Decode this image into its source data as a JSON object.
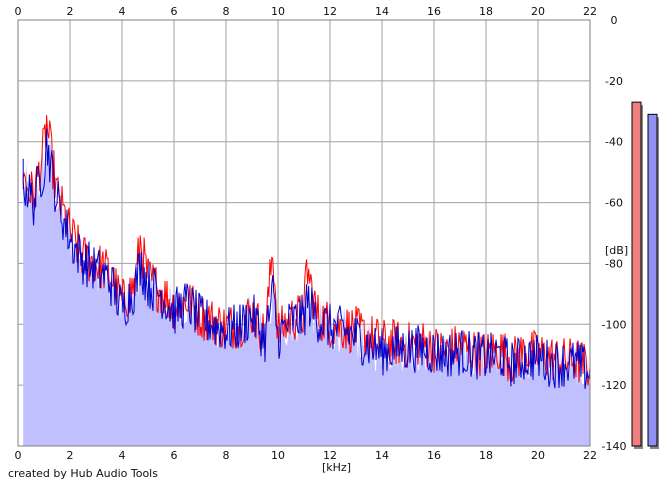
{
  "credit": "created by Hub Audio Tools",
  "chart_data": {
    "type": "line",
    "xlabel": "[kHz]",
    "ylabel": "[dB]",
    "xlim": [
      0,
      22
    ],
    "ylim": [
      -140,
      0
    ],
    "xticks": [
      "0",
      "2",
      "4",
      "6",
      "8",
      "10",
      "12",
      "14",
      "16",
      "18",
      "20",
      "22"
    ],
    "yticks": [
      "0",
      "-20",
      "-40",
      "-60",
      "-80",
      "-100",
      "-120",
      "-140"
    ],
    "grid": true,
    "colors": {
      "left_channel": "#ff0000",
      "right_channel": "#0000cc",
      "area_fill": "#c0c0ff",
      "grid": "#a0a0a0",
      "level_left": "#f08080",
      "level_right": "#9090f0"
    },
    "series": [
      {
        "color": "#ff0000",
        "x": [
          0.2,
          0.6,
          1.0,
          1.1,
          1.5,
          2.0,
          2.5,
          3.0,
          3.5,
          4.0,
          4.5,
          4.7,
          5.0,
          5.5,
          6.0,
          6.5,
          7.0,
          7.5,
          8.0,
          8.5,
          9.0,
          9.5,
          9.8,
          10.0,
          10.5,
          11.0,
          11.1,
          11.5,
          12.0,
          12.5,
          13.0,
          13.5,
          14.0,
          14.5,
          15.0,
          15.5,
          16.0,
          16.5,
          17.0,
          17.5,
          18.0,
          18.5,
          19.0,
          19.5,
          20.0,
          20.5,
          21.0,
          21.5,
          22.0
        ],
        "y": [
          -52,
          -58,
          -42,
          -34,
          -57,
          -70,
          -78,
          -80,
          -83,
          -93,
          -87,
          -73,
          -85,
          -89,
          -94,
          -92,
          -97,
          -99,
          -101,
          -100,
          -96,
          -104,
          -75,
          -103,
          -98,
          -97,
          -81,
          -97,
          -100,
          -101,
          -102,
          -104,
          -106,
          -106,
          -107,
          -106,
          -108,
          -109,
          -107,
          -109,
          -110,
          -108,
          -112,
          -109,
          -110,
          -111,
          -112,
          -112,
          -114
        ]
      },
      {
        "color": "#0000cc",
        "x": [
          0.2,
          0.6,
          1.0,
          1.1,
          1.5,
          2.0,
          2.5,
          3.0,
          3.5,
          4.0,
          4.5,
          4.7,
          5.0,
          5.5,
          6.0,
          6.5,
          7.0,
          7.5,
          8.0,
          8.5,
          9.0,
          9.5,
          9.8,
          10.0,
          10.5,
          11.0,
          11.1,
          11.5,
          12.0,
          12.5,
          13.0,
          13.5,
          14.0,
          14.5,
          15.0,
          15.5,
          16.0,
          16.5,
          17.0,
          17.5,
          18.0,
          18.5,
          19.0,
          19.5,
          20.0,
          20.5,
          21.0,
          21.5,
          22.0
        ],
        "y": [
          -53,
          -60,
          -48,
          -40,
          -59,
          -72,
          -79,
          -82,
          -85,
          -95,
          -88,
          -80,
          -87,
          -90,
          -96,
          -93,
          -98,
          -100,
          -102,
          -101,
          -97,
          -105,
          -90,
          -104,
          -99,
          -98,
          -92,
          -98,
          -101,
          -102,
          -104,
          -107,
          -109,
          -108,
          -108,
          -108,
          -109,
          -110,
          -109,
          -110,
          -111,
          -110,
          -113,
          -111,
          -111,
          -113,
          -113,
          -113,
          -116
        ]
      }
    ],
    "levels": {
      "left_db": -27,
      "right_db": -31
    }
  }
}
